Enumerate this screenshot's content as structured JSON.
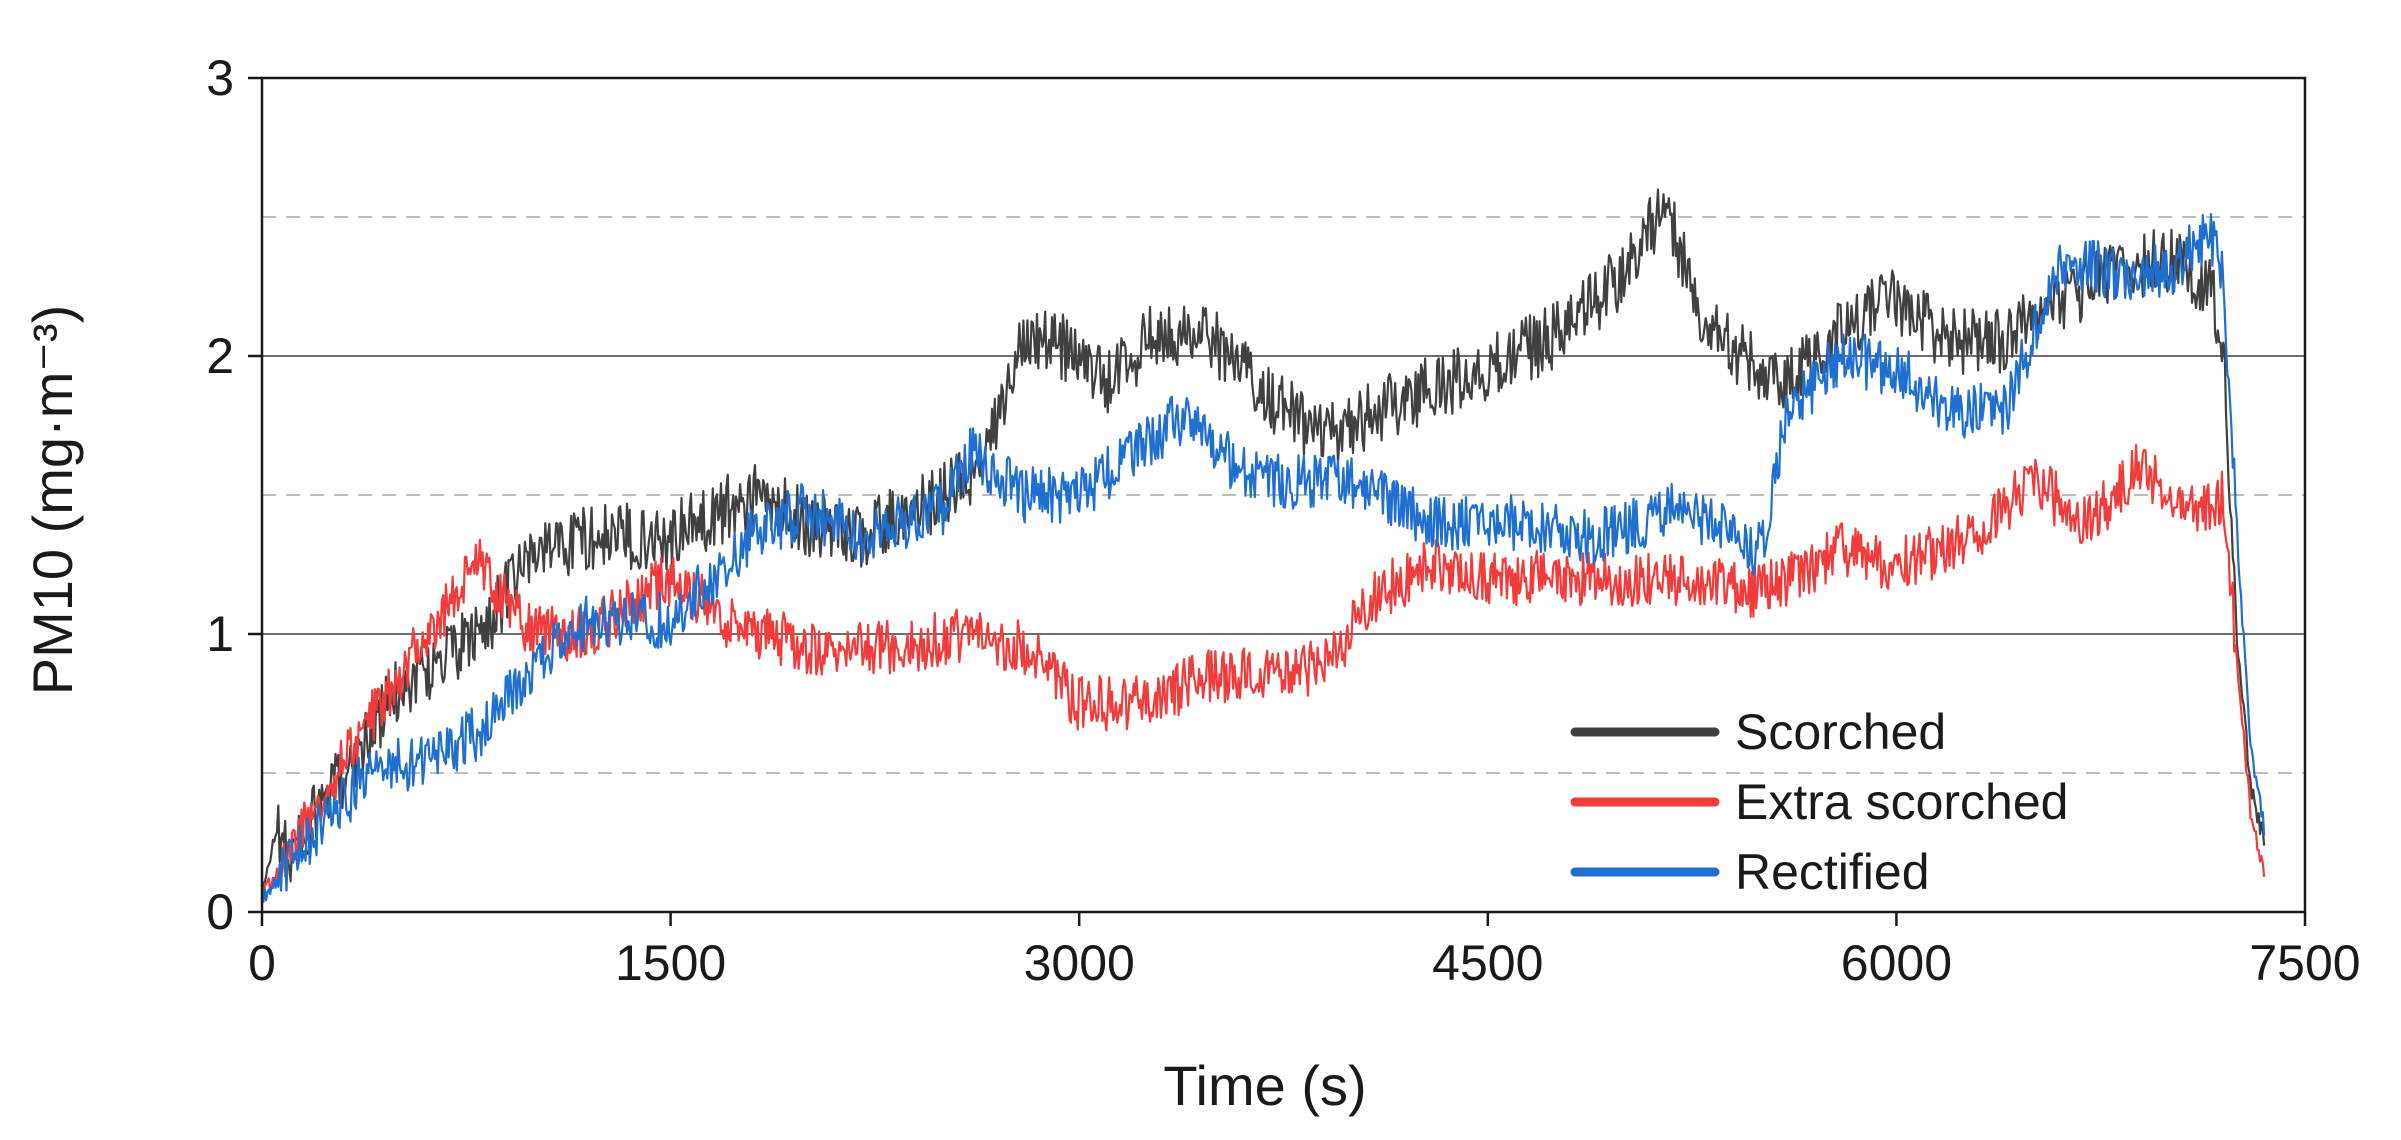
{
  "chart_data": {
    "type": "line",
    "title": "",
    "xlabel": "Time (s)",
    "ylabel": "PM10 (mg·m⁻³)",
    "xlim": [
      0,
      7500
    ],
    "ylim": [
      0,
      3
    ],
    "xticks": [
      0,
      1500,
      3000,
      4500,
      6000,
      7500
    ],
    "yticks": [
      0,
      1,
      2,
      3
    ],
    "grid": {
      "major_solid": [
        1,
        2
      ],
      "minor_dashed": [
        0.5,
        1.5,
        2.5
      ]
    },
    "legend_position": "bottom-right",
    "series": [
      {
        "name": "Scorched",
        "color": "#404040",
        "noise": 0.12,
        "points": [
          [
            0,
            0.05
          ],
          [
            50,
            0.3
          ],
          [
            100,
            0.2
          ],
          [
            300,
            0.5
          ],
          [
            500,
            0.8
          ],
          [
            800,
            1.0
          ],
          [
            1000,
            1.3
          ],
          [
            1200,
            1.35
          ],
          [
            1500,
            1.35
          ],
          [
            1800,
            1.5
          ],
          [
            2000,
            1.4
          ],
          [
            2200,
            1.35
          ],
          [
            2500,
            1.5
          ],
          [
            2650,
            1.6
          ],
          [
            2800,
            2.1
          ],
          [
            3000,
            2.0
          ],
          [
            3100,
            1.9
          ],
          [
            3300,
            2.1
          ],
          [
            3500,
            2.05
          ],
          [
            3700,
            1.85
          ],
          [
            3900,
            1.7
          ],
          [
            4200,
            1.85
          ],
          [
            4500,
            1.95
          ],
          [
            4800,
            2.1
          ],
          [
            5000,
            2.3
          ],
          [
            5150,
            2.55
          ],
          [
            5300,
            2.1
          ],
          [
            5500,
            1.95
          ],
          [
            5600,
            1.9
          ],
          [
            5800,
            2.1
          ],
          [
            6000,
            2.2
          ],
          [
            6200,
            2.05
          ],
          [
            6400,
            2.05
          ],
          [
            6600,
            2.2
          ],
          [
            6800,
            2.3
          ],
          [
            7000,
            2.35
          ],
          [
            7150,
            2.25
          ],
          [
            7200,
            2.05
          ],
          [
            7250,
            1.0
          ],
          [
            7300,
            0.45
          ],
          [
            7350,
            0.25
          ]
        ]
      },
      {
        "name": "Extra scorched",
        "color": "#f23b3b",
        "noise": 0.1,
        "points": [
          [
            0,
            0.05
          ],
          [
            200,
            0.4
          ],
          [
            400,
            0.7
          ],
          [
            600,
            1.0
          ],
          [
            800,
            1.25
          ],
          [
            900,
            1.1
          ],
          [
            1000,
            1.0
          ],
          [
            1200,
            1.0
          ],
          [
            1500,
            1.2
          ],
          [
            1700,
            1.05
          ],
          [
            2000,
            0.95
          ],
          [
            2300,
            0.95
          ],
          [
            2600,
            1.0
          ],
          [
            2800,
            0.95
          ],
          [
            3000,
            0.75
          ],
          [
            3200,
            0.75
          ],
          [
            3500,
            0.85
          ],
          [
            3800,
            0.85
          ],
          [
            3950,
            0.95
          ],
          [
            4100,
            1.15
          ],
          [
            4300,
            1.25
          ],
          [
            4500,
            1.2
          ],
          [
            5000,
            1.2
          ],
          [
            5300,
            1.2
          ],
          [
            5500,
            1.15
          ],
          [
            5800,
            1.3
          ],
          [
            6000,
            1.25
          ],
          [
            6300,
            1.35
          ],
          [
            6500,
            1.55
          ],
          [
            6700,
            1.4
          ],
          [
            6900,
            1.6
          ],
          [
            7100,
            1.45
          ],
          [
            7200,
            1.5
          ],
          [
            7260,
            0.8
          ],
          [
            7300,
            0.35
          ],
          [
            7350,
            0.15
          ]
        ]
      },
      {
        "name": "Rectified",
        "color": "#1f6fd1",
        "noise": 0.1,
        "points": [
          [
            0,
            0.05
          ],
          [
            200,
            0.3
          ],
          [
            400,
            0.5
          ],
          [
            600,
            0.55
          ],
          [
            800,
            0.65
          ],
          [
            1000,
            0.9
          ],
          [
            1200,
            1.05
          ],
          [
            1500,
            1.05
          ],
          [
            1800,
            1.35
          ],
          [
            2000,
            1.45
          ],
          [
            2200,
            1.35
          ],
          [
            2500,
            1.45
          ],
          [
            2600,
            1.65
          ],
          [
            2800,
            1.5
          ],
          [
            3000,
            1.5
          ],
          [
            3200,
            1.65
          ],
          [
            3400,
            1.8
          ],
          [
            3500,
            1.65
          ],
          [
            3700,
            1.55
          ],
          [
            4000,
            1.55
          ],
          [
            4300,
            1.4
          ],
          [
            4600,
            1.4
          ],
          [
            4900,
            1.35
          ],
          [
            5200,
            1.45
          ],
          [
            5500,
            1.3
          ],
          [
            5600,
            1.8
          ],
          [
            5800,
            2.0
          ],
          [
            6000,
            1.95
          ],
          [
            6200,
            1.8
          ],
          [
            6400,
            1.8
          ],
          [
            6600,
            2.35
          ],
          [
            6800,
            2.3
          ],
          [
            7000,
            2.3
          ],
          [
            7150,
            2.45
          ],
          [
            7200,
            2.3
          ],
          [
            7260,
            1.2
          ],
          [
            7300,
            0.6
          ],
          [
            7350,
            0.3
          ]
        ]
      }
    ]
  }
}
